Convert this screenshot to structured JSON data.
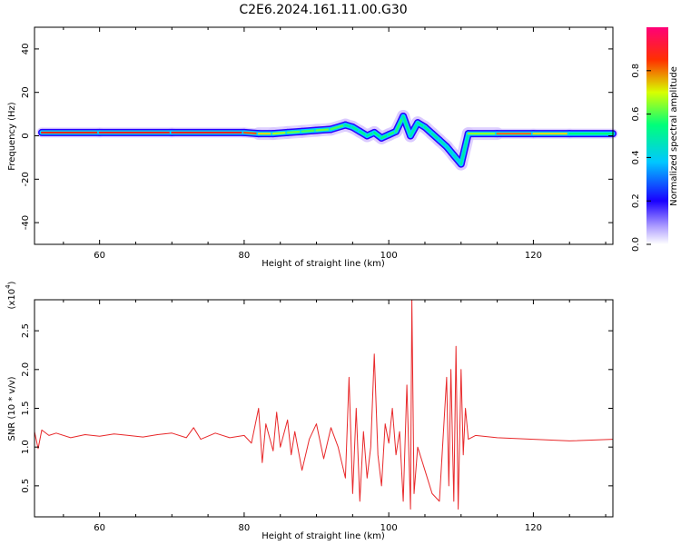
{
  "title": "C2E6.2024.161.11.00.G30",
  "chart_data": [
    {
      "type": "heatmap",
      "xlabel": "Height of straight line (km)",
      "ylabel": "Frequency (Hz)",
      "xlim": [
        51,
        131
      ],
      "ylim": [
        -50,
        50
      ],
      "xticks": [
        60,
        80,
        100,
        120
      ],
      "yticks": [
        -40,
        -20,
        0,
        20,
        40
      ],
      "colorbar": {
        "label": "Normalized spectral amplitude",
        "range": [
          0,
          1
        ],
        "ticks": [
          "0.0",
          "0.2",
          "0.4",
          "0.6",
          "0.8"
        ],
        "colors": [
          "#ffffff",
          "#1a00ff",
          "#00c8ff",
          "#00ff7a",
          "#e0ff00",
          "#ff3000",
          "#ff0078"
        ]
      },
      "ridge": [
        {
          "x": 52,
          "f": 1.5,
          "a": 0.85
        },
        {
          "x": 60,
          "f": 1.5,
          "a": 0.9
        },
        {
          "x": 70,
          "f": 1.5,
          "a": 0.88
        },
        {
          "x": 80,
          "f": 1.5,
          "a": 0.9
        },
        {
          "x": 82,
          "f": 1.0,
          "a": 0.75
        },
        {
          "x": 84,
          "f": 1.0,
          "a": 0.7
        },
        {
          "x": 86,
          "f": 1.5,
          "a": 0.65
        },
        {
          "x": 88,
          "f": 2.0,
          "a": 0.6
        },
        {
          "x": 90,
          "f": 2.5,
          "a": 0.6
        },
        {
          "x": 92,
          "f": 3.0,
          "a": 0.65
        },
        {
          "x": 94,
          "f": 5.0,
          "a": 0.55
        },
        {
          "x": 95,
          "f": 4.0,
          "a": 0.5
        },
        {
          "x": 96,
          "f": 2.0,
          "a": 0.55
        },
        {
          "x": 97,
          "f": 0.0,
          "a": 0.5
        },
        {
          "x": 98,
          "f": 1.5,
          "a": 0.55
        },
        {
          "x": 99,
          "f": -1.0,
          "a": 0.55
        },
        {
          "x": 100,
          "f": 0.5,
          "a": 0.55
        },
        {
          "x": 101,
          "f": 2.0,
          "a": 0.6
        },
        {
          "x": 102,
          "f": 9.0,
          "a": 0.55
        },
        {
          "x": 103,
          "f": 0.0,
          "a": 0.5
        },
        {
          "x": 104,
          "f": 6.0,
          "a": 0.5
        },
        {
          "x": 105,
          "f": 4.0,
          "a": 0.55
        },
        {
          "x": 106,
          "f": 1.0,
          "a": 0.5
        },
        {
          "x": 107,
          "f": -2.0,
          "a": 0.5
        },
        {
          "x": 108,
          "f": -5.0,
          "a": 0.45
        },
        {
          "x": 109,
          "f": -9.0,
          "a": 0.45
        },
        {
          "x": 110,
          "f": -13.0,
          "a": 0.45
        },
        {
          "x": 111,
          "f": 1.0,
          "a": 0.55
        },
        {
          "x": 115,
          "f": 1.0,
          "a": 0.75
        },
        {
          "x": 120,
          "f": 1.0,
          "a": 0.85
        },
        {
          "x": 125,
          "f": 1.0,
          "a": 0.6
        },
        {
          "x": 131,
          "f": 1.0,
          "a": 0.5
        }
      ]
    },
    {
      "type": "line",
      "xlabel": "Height of straight line (km)",
      "ylabel": "SNR (10 * v/v)",
      "yscale_note": "(x10",
      "yscale_exp": "4",
      "yscale_close": ")",
      "xlim": [
        51,
        131
      ],
      "ylim": [
        0.1,
        2.9
      ],
      "xticks": [
        60,
        80,
        100,
        120
      ],
      "yticks": [
        0.5,
        1.0,
        1.5,
        2.0,
        2.5
      ],
      "series": [
        {
          "color": "#e8282a",
          "x": [
            51,
            51.5,
            52,
            53,
            54,
            56,
            58,
            60,
            62,
            64,
            66,
            68,
            70,
            72,
            73,
            74,
            76,
            78,
            80,
            81,
            82,
            82.5,
            83,
            84,
            84.5,
            85,
            86,
            86.5,
            87,
            88,
            89,
            90,
            91,
            92,
            93,
            94,
            94.5,
            95,
            95.5,
            96,
            96.5,
            97,
            97.5,
            98,
            98.5,
            99,
            99.5,
            100,
            100.5,
            101,
            101.5,
            102,
            102.5,
            103,
            103.2,
            103.5,
            104,
            105,
            106,
            107,
            108,
            108.3,
            108.6,
            109,
            109.3,
            109.6,
            110,
            110.3,
            110.6,
            111,
            112,
            115,
            120,
            125,
            131
          ],
          "y": [
            1.2,
            0.98,
            1.22,
            1.15,
            1.18,
            1.12,
            1.16,
            1.14,
            1.17,
            1.15,
            1.13,
            1.16,
            1.18,
            1.12,
            1.25,
            1.1,
            1.18,
            1.12,
            1.15,
            1.05,
            1.5,
            0.8,
            1.3,
            0.95,
            1.45,
            1.0,
            1.35,
            0.9,
            1.2,
            0.7,
            1.1,
            1.3,
            0.85,
            1.25,
            1.0,
            0.6,
            1.9,
            0.4,
            1.5,
            0.3,
            1.2,
            0.6,
            1.0,
            2.2,
            0.9,
            0.5,
            1.3,
            1.05,
            1.5,
            0.9,
            1.2,
            0.3,
            1.8,
            0.2,
            2.9,
            0.4,
            1.0,
            0.7,
            0.4,
            0.3,
            1.9,
            0.5,
            2.0,
            0.3,
            2.3,
            0.2,
            2.0,
            0.9,
            1.5,
            1.1,
            1.15,
            1.12,
            1.1,
            1.08,
            1.1
          ]
        }
      ]
    }
  ]
}
